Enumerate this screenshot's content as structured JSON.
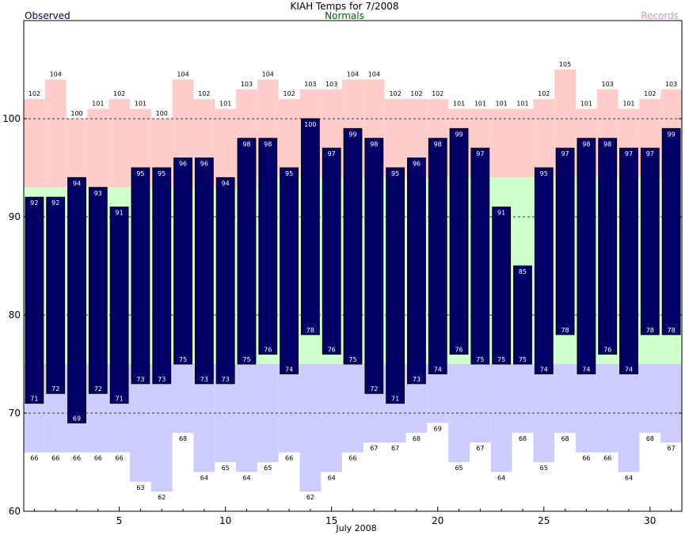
{
  "title": "KIAH Temps for 7/2008",
  "legend": {
    "observed": "Observed",
    "normals": "Normals",
    "records": "Records"
  },
  "colors": {
    "observed": "#000066",
    "normal": "#ccffcc",
    "record_high": "#ffcccc",
    "record_low": "#ccccff",
    "observed_label": "#000066",
    "normals_label": "#006600",
    "records_label": "#cc99cc",
    "gridline": "#000000"
  },
  "chart_data": {
    "type": "bar",
    "title": "KIAH Temps for 7/2008",
    "xlabel": "July 2008",
    "ylabel": "",
    "ylim": [
      60,
      110
    ],
    "xlim": [
      0.5,
      31.5
    ],
    "yticks": [
      60,
      70,
      80,
      90,
      100
    ],
    "xticks": [
      5,
      10,
      15,
      20,
      25,
      30
    ],
    "dashed_gridlines": [
      70,
      80,
      90,
      100
    ],
    "days": [
      1,
      2,
      3,
      4,
      5,
      6,
      7,
      8,
      9,
      10,
      11,
      12,
      13,
      14,
      15,
      16,
      17,
      18,
      19,
      20,
      21,
      22,
      23,
      24,
      25,
      26,
      27,
      28,
      29,
      30,
      31
    ],
    "series": [
      {
        "name": "Observed High",
        "values": [
          92,
          92,
          94,
          93,
          91,
          95,
          95,
          96,
          96,
          94,
          98,
          98,
          95,
          100,
          97,
          99,
          98,
          95,
          96,
          98,
          99,
          97,
          91,
          85,
          95,
          97,
          98,
          98,
          97,
          97,
          99
        ]
      },
      {
        "name": "Observed Low",
        "values": [
          71,
          72,
          69,
          72,
          71,
          73,
          73,
          75,
          73,
          73,
          75,
          76,
          74,
          78,
          76,
          75,
          72,
          71,
          73,
          74,
          76,
          75,
          75,
          75,
          74,
          78,
          74,
          76,
          74,
          78,
          78
        ]
      },
      {
        "name": "Normal High",
        "values": [
          93,
          93,
          93,
          93,
          93,
          93,
          93,
          93,
          93,
          93,
          93,
          94,
          94,
          94,
          94,
          94,
          94,
          94,
          94,
          94,
          94,
          94,
          94,
          94,
          94,
          94,
          94,
          94,
          94,
          94,
          94
        ]
      },
      {
        "name": "Normal Low",
        "values": [
          75,
          75,
          75,
          75,
          75,
          75,
          75,
          75,
          75,
          75,
          75,
          75,
          75,
          75,
          75,
          75,
          75,
          75,
          75,
          75,
          75,
          75,
          75,
          75,
          75,
          75,
          75,
          75,
          75,
          75,
          75
        ]
      },
      {
        "name": "Record High",
        "values": [
          102,
          104,
          100,
          101,
          102,
          101,
          100,
          104,
          102,
          101,
          103,
          104,
          102,
          103,
          103,
          104,
          104,
          102,
          102,
          102,
          101,
          101,
          101,
          101,
          102,
          105,
          101,
          103,
          101,
          102,
          103
        ]
      },
      {
        "name": "Record Low",
        "values": [
          66,
          66,
          66,
          66,
          66,
          63,
          62,
          68,
          64,
          65,
          64,
          65,
          66,
          62,
          64,
          66,
          67,
          67,
          68,
          69,
          65,
          67,
          64,
          68,
          65,
          68,
          66,
          66,
          64,
          68,
          67
        ]
      }
    ]
  }
}
